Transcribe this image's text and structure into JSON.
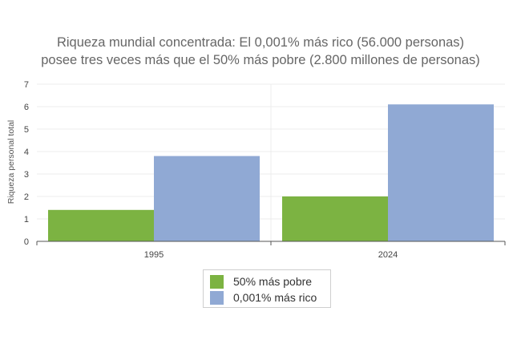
{
  "chart_data": {
    "type": "bar",
    "title": "Riqueza mundial concentrada: El 0,001% más rico (56.000 personas)",
    "subtitle": "posee tres veces más que el 50% más pobre (2.800 millones de personas)",
    "ylabel": "Riqueza personal total",
    "xlabel": "",
    "categories": [
      "1995",
      "2024"
    ],
    "series": [
      {
        "name": "50% más pobre",
        "color": "#7cb342",
        "values": [
          1.4,
          2.0
        ]
      },
      {
        "name": "0,001% más rico",
        "color": "#90a9d4",
        "values": [
          3.8,
          6.1
        ]
      }
    ],
    "ylim": [
      0,
      7
    ],
    "yticks": [
      0,
      1,
      2,
      3,
      4,
      5,
      6,
      7
    ],
    "grid": true,
    "legend_position": "bottom"
  }
}
